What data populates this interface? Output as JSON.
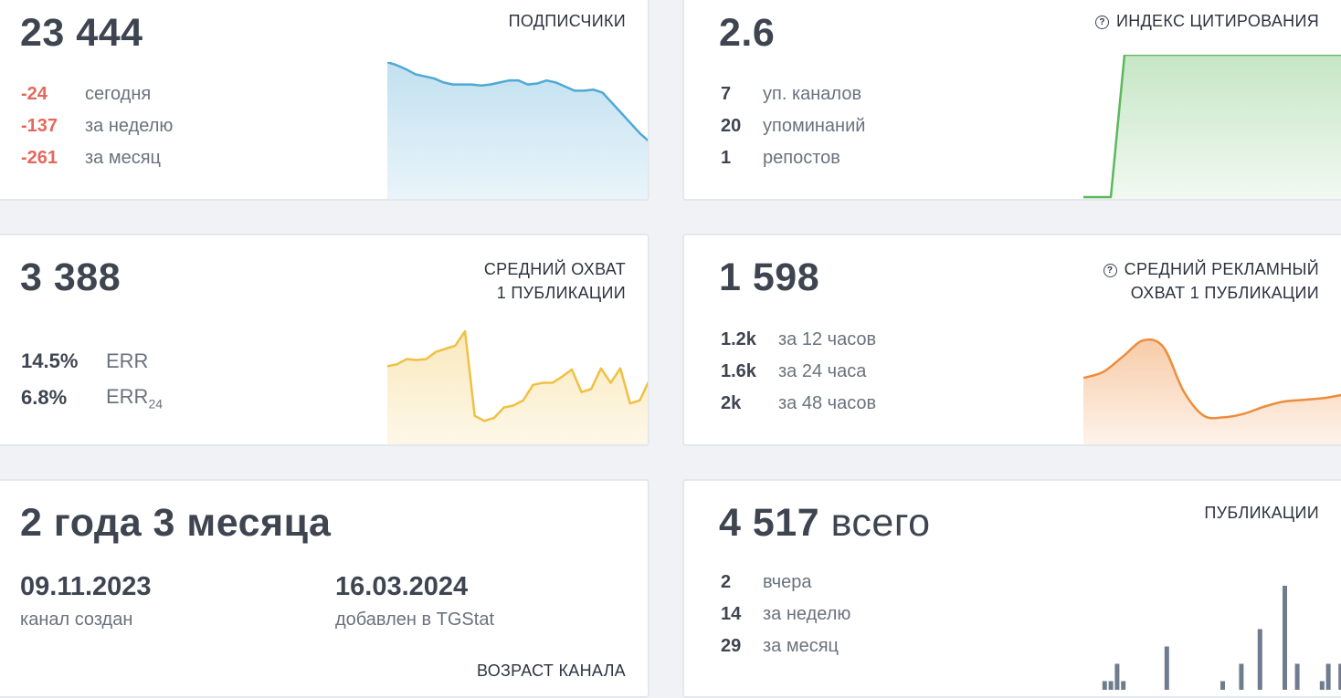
{
  "subscribers": {
    "value": "23 444",
    "title": "ПОДПИСЧИКИ",
    "rows": [
      {
        "val": "-24",
        "text": "сегодня"
      },
      {
        "val": "-137",
        "text": "за неделю"
      },
      {
        "val": "-261",
        "text": "за месяц"
      }
    ]
  },
  "citation": {
    "value": "2.6",
    "title": "ИНДЕКС ЦИТИРОВАНИЯ",
    "rows": [
      {
        "val": "7",
        "text": "уп. каналов"
      },
      {
        "val": "20",
        "text": "упоминаний"
      },
      {
        "val": "1",
        "text": "репостов"
      }
    ]
  },
  "avg_reach": {
    "value": "3 388",
    "title_line1": "СРЕДНИЙ ОХВАТ",
    "title_line2": "1 ПУБЛИКАЦИИ",
    "rows": [
      {
        "val": "14.5%",
        "text": "ERR"
      },
      {
        "val": "6.8%",
        "text": "ERR",
        "sub": "24"
      }
    ]
  },
  "ad_reach": {
    "value": "1 598",
    "title_line1": "СРЕДНИЙ РЕКЛАМНЫЙ",
    "title_line2": "ОХВАТ 1 ПУБЛИКАЦИИ",
    "rows": [
      {
        "val": "1.2k",
        "text": "за 12 часов"
      },
      {
        "val": "1.6k",
        "text": "за 24 часа"
      },
      {
        "val": "2k",
        "text": "за 48 часов"
      }
    ]
  },
  "age": {
    "value": "2 года 3 месяца",
    "created_date": "09.11.2023",
    "created_label": "канал создан",
    "added_date": "16.03.2024",
    "added_label": "добавлен в TGStat",
    "title": "ВОЗРАСТ КАНАЛА"
  },
  "posts": {
    "value": "4 517",
    "value_suffix": "всего",
    "title": "ПУБЛИКАЦИИ",
    "rows": [
      {
        "val": "2",
        "text": "вчера"
      },
      {
        "val": "14",
        "text": "за неделю"
      },
      {
        "val": "29",
        "text": "за месяц"
      }
    ]
  },
  "colors": {
    "negative": "#e5675c",
    "subscribers_line": "#4fa8d5",
    "citation_line": "#5cb85c",
    "reach_line": "#f0c043",
    "ad_reach_line": "#ee8c3c",
    "posts_bar": "#6f7c8e"
  },
  "chart_data": [
    {
      "type": "area",
      "series": [
        {
          "values": [
            100,
            97,
            93,
            88,
            86,
            84,
            80,
            78,
            78,
            78,
            77,
            78,
            80,
            82,
            82,
            78,
            79,
            82,
            80,
            76,
            72,
            72,
            73,
            70,
            60,
            50,
            40,
            30,
            22
          ]
        }
      ]
    },
    {
      "type": "area",
      "series": [
        {
          "values": [
            0,
            0,
            0,
            100,
            100,
            100,
            100,
            100,
            100,
            100,
            100,
            100,
            100,
            100,
            100,
            100,
            100,
            100,
            100,
            100
          ]
        }
      ]
    },
    {
      "type": "area",
      "series": [
        {
          "values": [
            58,
            60,
            65,
            64,
            65,
            72,
            75,
            78,
            92,
            10,
            5,
            8,
            18,
            20,
            25,
            40,
            42,
            42,
            48,
            55,
            33,
            36,
            56,
            42,
            56,
            22,
            25,
            45
          ]
        }
      ]
    },
    {
      "type": "area",
      "series": [
        {
          "values": [
            55,
            62,
            80,
            98,
            90,
            40,
            12,
            10,
            14,
            22,
            28,
            30,
            32,
            36
          ]
        }
      ]
    },
    {
      "type": "bar",
      "values": [
        0,
        1,
        1,
        3,
        1,
        0,
        0,
        0,
        0,
        0,
        0,
        5,
        0,
        0,
        0,
        0,
        0,
        0,
        0,
        0,
        1,
        0,
        0,
        3,
        0,
        0,
        7,
        0,
        0,
        0,
        12,
        0,
        3,
        0,
        0,
        0,
        1,
        3,
        0,
        3
      ]
    }
  ]
}
